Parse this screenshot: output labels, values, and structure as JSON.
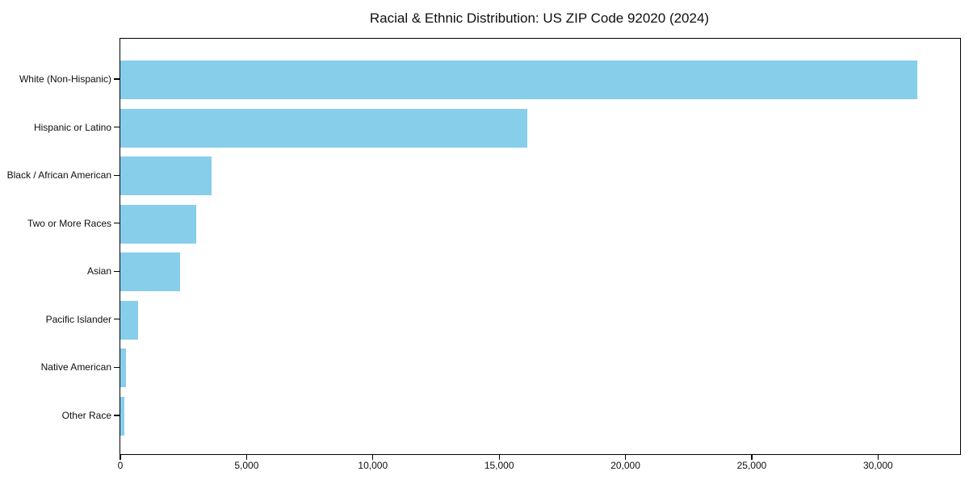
{
  "figure": {
    "background": "#ffffff"
  },
  "chart_data": {
    "type": "bar",
    "orientation": "horizontal",
    "title": "Racial & Ethnic Distribution: US ZIP Code 92020 (2024)",
    "categories": [
      "White (Non-Hispanic)",
      "Hispanic or Latino",
      "Black / African American",
      "Two or More Races",
      "Asian",
      "Pacific Islander",
      "Native American",
      "Other Race"
    ],
    "values": [
      31560,
      16100,
      3600,
      2990,
      2380,
      690,
      210,
      170
    ],
    "bar_color": "#87CEEB",
    "axis_color": "#000000",
    "text_color": "#0f0f0f",
    "xlabel": "",
    "ylabel": "",
    "xlim": [
      0,
      33250
    ],
    "x_ticks": [
      0,
      5000,
      10000,
      15000,
      20000,
      25000,
      30000
    ],
    "x_tick_labels": [
      "0",
      "5,000",
      "10,000",
      "15,000",
      "20,000",
      "25,000",
      "30,000"
    ],
    "grid": false,
    "legend": false,
    "bar_height_frac": 0.8
  }
}
